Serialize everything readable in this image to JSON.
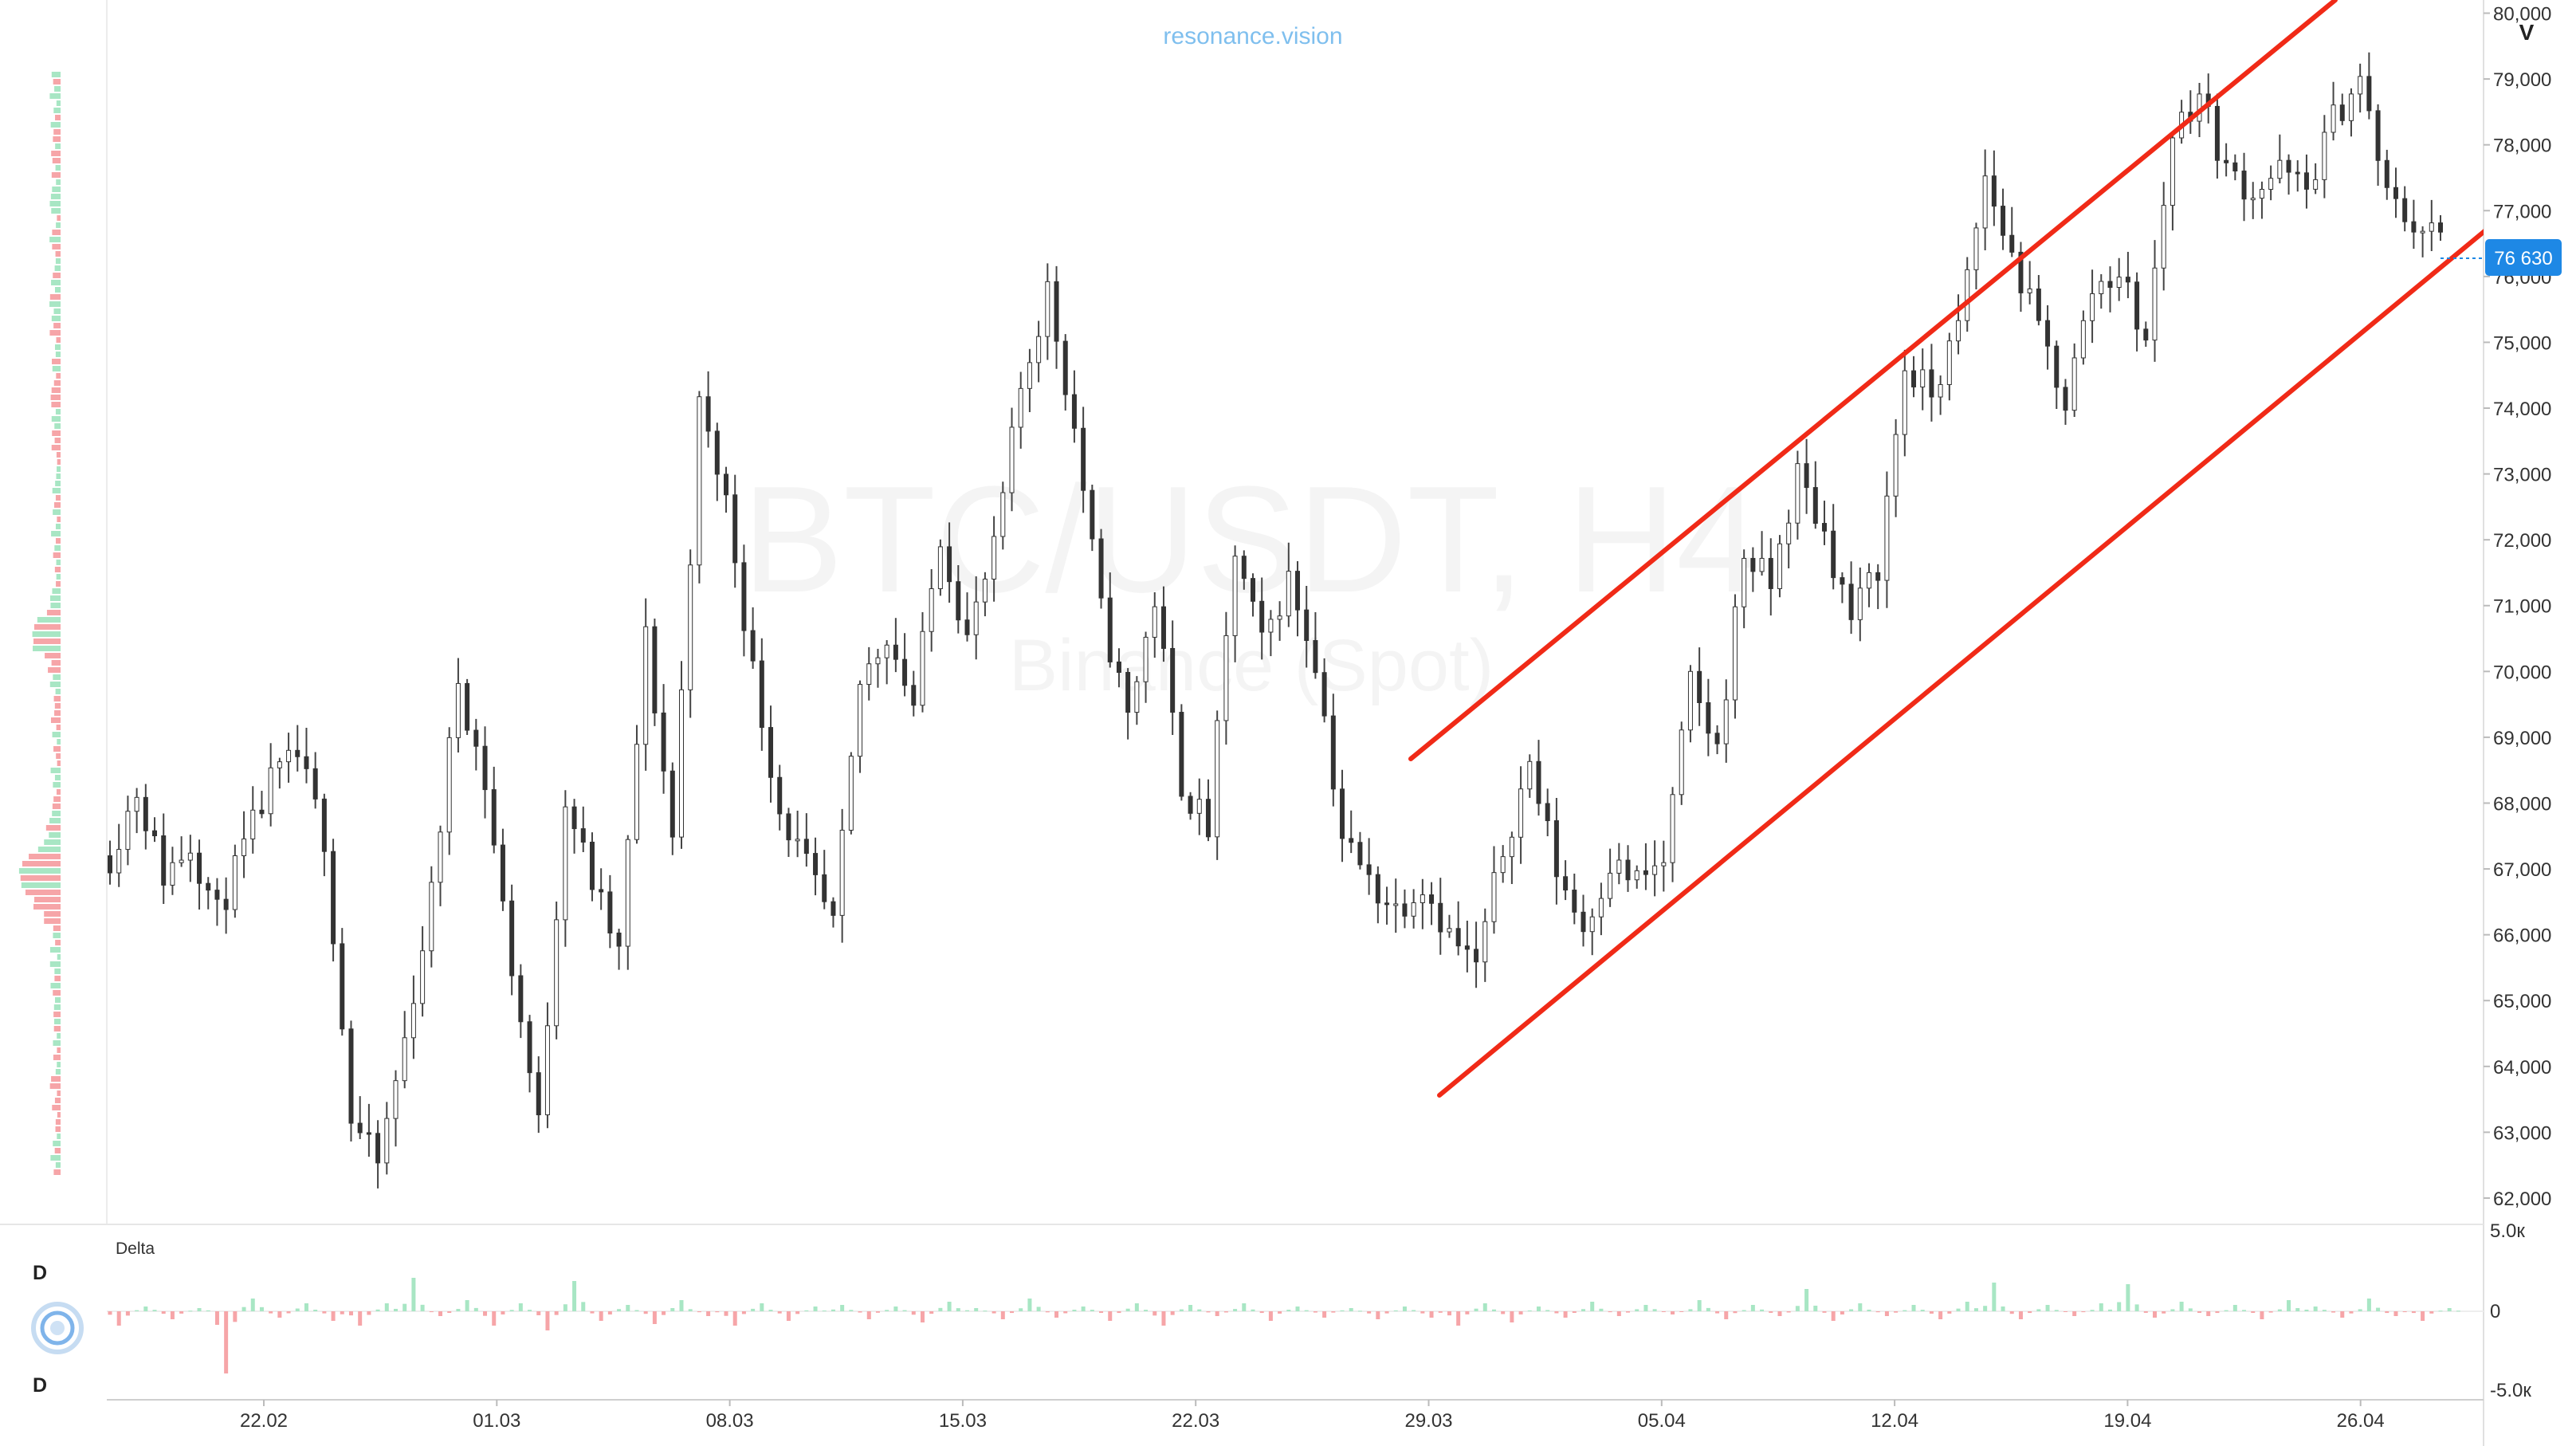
{
  "brand": "resonance.vision",
  "watermark": {
    "symbol": "BTC/USDT, H4",
    "exchange": "Binance (Spot)"
  },
  "last_price_badge": "76 630",
  "top_right_corner_label": "V",
  "left_side_labels": [
    "D",
    "D"
  ],
  "delta_panel": {
    "title": "Delta",
    "ticks": [
      "5.0к",
      "0",
      "-5.0к"
    ]
  },
  "colors": {
    "up": "#a8e6c4",
    "down": "#f6a5a8",
    "candle": "#444444",
    "trend_line": "#f02a17",
    "badge": "#1e88e5",
    "brand": "#7fbfee"
  },
  "chart_data": {
    "type": "candlestick",
    "title": "",
    "y_unit": "USDT",
    "ylim": [
      61600,
      80200
    ],
    "y_ticks": [
      "62,000",
      "63,000",
      "64,000",
      "65,000",
      "66,000",
      "67,000",
      "68,000",
      "69,000",
      "70,000",
      "71,000",
      "72,000",
      "73,000",
      "74,000",
      "75,000",
      "76,000",
      "77,000",
      "78,000",
      "79,000",
      "80,000"
    ],
    "x_ticks": [
      "22.02",
      "01.03",
      "08.03",
      "15.03",
      "22.03",
      "29.03",
      "05.04",
      "12.04",
      "19.04",
      "26.04"
    ],
    "price_path": [
      [
        0,
        67200
      ],
      [
        3,
        68200
      ],
      [
        6,
        66900
      ],
      [
        9,
        67400
      ],
      [
        12,
        66300
      ],
      [
        15,
        67300
      ],
      [
        18,
        68300
      ],
      [
        21,
        68700
      ],
      [
        24,
        67500
      ],
      [
        27,
        63200
      ],
      [
        30,
        62500
      ],
      [
        33,
        64400
      ],
      [
        36,
        66600
      ],
      [
        39,
        69900
      ],
      [
        42,
        68300
      ],
      [
        45,
        65500
      ],
      [
        48,
        63100
      ],
      [
        51,
        68100
      ],
      [
        54,
        66800
      ],
      [
        57,
        65700
      ],
      [
        60,
        70500
      ],
      [
        63,
        67500
      ],
      [
        66,
        74000
      ],
      [
        69,
        72600
      ],
      [
        72,
        70000
      ],
      [
        75,
        67900
      ],
      [
        78,
        67000
      ],
      [
        81,
        66100
      ],
      [
        84,
        69800
      ],
      [
        87,
        70600
      ],
      [
        90,
        69500
      ],
      [
        93,
        72100
      ],
      [
        96,
        70500
      ],
      [
        99,
        71800
      ],
      [
        102,
        74300
      ],
      [
        105,
        75800
      ],
      [
        108,
        73700
      ],
      [
        111,
        70900
      ],
      [
        114,
        69300
      ],
      [
        117,
        71100
      ],
      [
        120,
        68300
      ],
      [
        123,
        67600
      ],
      [
        126,
        71800
      ],
      [
        129,
        70400
      ],
      [
        132,
        71400
      ],
      [
        135,
        70200
      ],
      [
        138,
        67500
      ],
      [
        141,
        66800
      ],
      [
        144,
        66400
      ],
      [
        147,
        66800
      ],
      [
        150,
        66000
      ],
      [
        153,
        65500
      ],
      [
        156,
        67300
      ],
      [
        159,
        68600
      ],
      [
        162,
        67000
      ],
      [
        165,
        66100
      ],
      [
        168,
        67100
      ],
      [
        171,
        66800
      ],
      [
        174,
        67100
      ],
      [
        177,
        69800
      ],
      [
        180,
        68800
      ],
      [
        183,
        71800
      ],
      [
        186,
        71300
      ],
      [
        189,
        73000
      ],
      [
        192,
        72100
      ],
      [
        195,
        70800
      ],
      [
        198,
        71600
      ],
      [
        201,
        74600
      ],
      [
        204,
        74200
      ],
      [
        207,
        75200
      ],
      [
        210,
        77500
      ],
      [
        213,
        76300
      ],
      [
        216,
        75200
      ],
      [
        219,
        74100
      ],
      [
        222,
        75800
      ],
      [
        225,
        76100
      ],
      [
        228,
        75000
      ],
      [
        231,
        78200
      ],
      [
        234,
        78800
      ],
      [
        237,
        77600
      ],
      [
        240,
        77300
      ],
      [
        243,
        77600
      ],
      [
        246,
        77300
      ],
      [
        249,
        78400
      ],
      [
        252,
        79000
      ],
      [
        255,
        77200
      ],
      [
        258,
        76800
      ],
      [
        261,
        76600
      ]
    ],
    "delta": {
      "series": [
        {
          "name": "Delta",
          "x": [
            0,
            3,
            6,
            9,
            12,
            15,
            18,
            21,
            24,
            27,
            30,
            33,
            36,
            39,
            42,
            45,
            48,
            51,
            54,
            57,
            60,
            63,
            66,
            69,
            72,
            75,
            78,
            81,
            84,
            87,
            90,
            93,
            96,
            99,
            102,
            105,
            108,
            111,
            114,
            117,
            120,
            123,
            126,
            129,
            132,
            135,
            138,
            141,
            144,
            147,
            150,
            153,
            156,
            159,
            162,
            165,
            168,
            171,
            174,
            177,
            180,
            183,
            186,
            189,
            192,
            195,
            198,
            201,
            204,
            207,
            210,
            213,
            216,
            219,
            222,
            225,
            228,
            231,
            234,
            237,
            240,
            243,
            246,
            249,
            252,
            255,
            258,
            261
          ],
          "values": [
            -900,
            300,
            -500,
            200,
            -3900,
            800,
            -400,
            500,
            -600,
            -900,
            500,
            2100,
            -300,
            700,
            -900,
            500,
            -1200,
            1900,
            -600,
            400,
            -800,
            700,
            -300,
            -900,
            500,
            -600,
            300,
            400,
            -500,
            300,
            -700,
            600,
            200,
            -500,
            800,
            -400,
            300,
            -600,
            500,
            -900,
            400,
            -300,
            500,
            -600,
            300,
            -400,
            200,
            -500,
            300,
            -400,
            -900,
            500,
            -700,
            300,
            -400,
            600,
            -300,
            400,
            -200,
            700,
            -500,
            400,
            -300,
            1400,
            -600,
            500,
            -300,
            400,
            -500,
            600,
            1800,
            -500,
            400,
            -300,
            500,
            1700,
            -400,
            600,
            -300,
            400,
            -500,
            700,
            300,
            -400,
            800,
            -300,
            -600,
            200
          ]
        }
      ],
      "ylim": [
        -5000,
        5000
      ]
    }
  }
}
